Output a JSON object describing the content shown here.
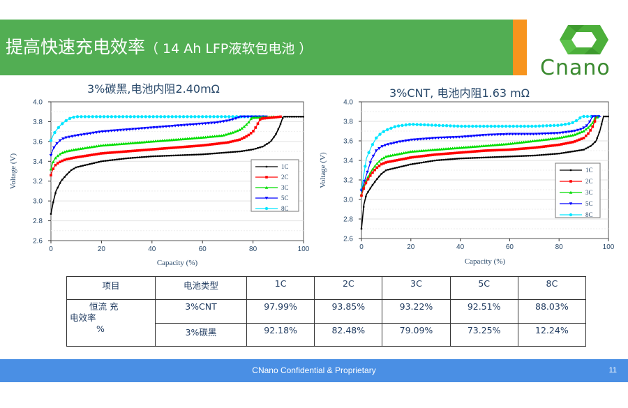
{
  "header": {
    "title": "提高快速充电效率",
    "subtitle": "（ 14 Ah LFP液软包电池 ）",
    "colors": {
      "bar": "#52ae53",
      "accent": "#f7941d"
    }
  },
  "logo": {
    "text": "Cnano",
    "icon": "hexagon-logo-icon",
    "color": "#3a8a2f"
  },
  "chart_data": [
    {
      "type": "line",
      "title": "3%碳黑,电池内阻2.40mΩ",
      "xlabel": "Capacity (%)",
      "ylabel": "Voltage (V)",
      "xlim": [
        0,
        100
      ],
      "ylim": [
        2.6,
        4.0
      ],
      "xticks": [
        "0",
        "20",
        "40",
        "60",
        "80",
        "100"
      ],
      "yticks": [
        "2.6",
        "2.8",
        "3.0",
        "3.2",
        "3.4",
        "3.6",
        "3.8",
        "4.0"
      ],
      "legend_position": "right",
      "grid": true,
      "series": [
        {
          "name": "1C",
          "color": "#000000",
          "x": [
            0,
            1,
            2,
            4,
            6,
            8,
            10,
            15,
            20,
            30,
            40,
            50,
            60,
            70,
            75,
            80,
            84,
            87,
            89,
            90.5,
            91.5,
            92,
            100
          ],
          "y": [
            2.87,
            3.0,
            3.1,
            3.2,
            3.26,
            3.31,
            3.34,
            3.37,
            3.4,
            3.43,
            3.45,
            3.46,
            3.47,
            3.49,
            3.5,
            3.52,
            3.55,
            3.6,
            3.67,
            3.75,
            3.82,
            3.85,
            3.85
          ]
        },
        {
          "name": "2C",
          "color": "#ff0000",
          "x": [
            0,
            0.5,
            1,
            2,
            4,
            6,
            10,
            20,
            30,
            40,
            50,
            60,
            70,
            75,
            78,
            80,
            81.5,
            82.5,
            83,
            91
          ],
          "y": [
            3.26,
            3.3,
            3.33,
            3.37,
            3.4,
            3.42,
            3.44,
            3.48,
            3.5,
            3.52,
            3.54,
            3.56,
            3.59,
            3.62,
            3.66,
            3.7,
            3.76,
            3.81,
            3.83,
            3.85
          ]
        },
        {
          "name": "3C",
          "color": "#00dd00",
          "x": [
            0,
            0.5,
            1,
            2,
            4,
            6,
            10,
            20,
            30,
            40,
            50,
            60,
            68,
            72,
            75,
            77,
            78.5,
            79.5,
            89
          ],
          "y": [
            3.32,
            3.37,
            3.4,
            3.44,
            3.48,
            3.5,
            3.52,
            3.56,
            3.58,
            3.6,
            3.62,
            3.64,
            3.66,
            3.69,
            3.72,
            3.76,
            3.8,
            3.84,
            3.85
          ]
        },
        {
          "name": "5C",
          "color": "#0000ff",
          "x": [
            0,
            0.5,
            1,
            2,
            4,
            6,
            10,
            15,
            20,
            30,
            40,
            50,
            60,
            65,
            70,
            73,
            75,
            86
          ],
          "y": [
            3.46,
            3.5,
            3.53,
            3.57,
            3.62,
            3.64,
            3.66,
            3.68,
            3.7,
            3.72,
            3.74,
            3.76,
            3.78,
            3.79,
            3.81,
            3.83,
            3.85,
            3.85
          ]
        },
        {
          "name": "8C",
          "color": "#00e5ff",
          "x": [
            0,
            1,
            2,
            4,
            6,
            8,
            10,
            85
          ],
          "y": [
            3.61,
            3.67,
            3.71,
            3.77,
            3.81,
            3.84,
            3.85,
            3.85
          ]
        }
      ]
    },
    {
      "type": "line",
      "title": "3%CNT, 电池内阻1.63 mΩ",
      "xlabel": "Capacity (%)",
      "ylabel": "Voltage (V)",
      "xlim": [
        0,
        100
      ],
      "ylim": [
        2.6,
        4.0
      ],
      "xticks": [
        "0",
        "20",
        "40",
        "60",
        "80",
        "100"
      ],
      "yticks": [
        "2.6",
        "2.8",
        "3.0",
        "3.2",
        "3.4",
        "3.6",
        "3.8",
        "4.0"
      ],
      "legend_position": "right",
      "grid": true,
      "series": [
        {
          "name": "1C",
          "color": "#000000",
          "x": [
            0,
            1,
            2,
            4,
            6,
            8,
            10,
            15,
            20,
            30,
            40,
            50,
            60,
            70,
            80,
            85,
            90,
            93,
            95,
            96.5,
            97.5,
            98,
            100
          ],
          "y": [
            2.7,
            2.95,
            3.05,
            3.13,
            3.2,
            3.26,
            3.3,
            3.33,
            3.36,
            3.4,
            3.42,
            3.43,
            3.44,
            3.45,
            3.47,
            3.49,
            3.51,
            3.55,
            3.6,
            3.7,
            3.8,
            3.85,
            3.85
          ]
        },
        {
          "name": "2C",
          "color": "#ff0000",
          "x": [
            0,
            1,
            2,
            4,
            6,
            8,
            10,
            20,
            30,
            40,
            50,
            60,
            70,
            80,
            86,
            90,
            92,
            93.5,
            94.5,
            95
          ],
          "y": [
            3.04,
            3.12,
            3.18,
            3.26,
            3.32,
            3.36,
            3.38,
            3.43,
            3.46,
            3.48,
            3.5,
            3.51,
            3.53,
            3.56,
            3.59,
            3.63,
            3.68,
            3.74,
            3.8,
            3.85
          ]
        },
        {
          "name": "3C",
          "color": "#00dd00",
          "x": [
            0,
            1,
            2,
            4,
            6,
            8,
            10,
            20,
            30,
            40,
            50,
            60,
            70,
            80,
            86,
            90,
            92,
            93.5,
            94.5,
            96
          ],
          "y": [
            3.05,
            3.14,
            3.2,
            3.29,
            3.36,
            3.41,
            3.44,
            3.49,
            3.51,
            3.53,
            3.55,
            3.57,
            3.6,
            3.63,
            3.66,
            3.7,
            3.74,
            3.78,
            3.83,
            3.85
          ]
        },
        {
          "name": "5C",
          "color": "#0000ff",
          "x": [
            0,
            1,
            2,
            4,
            6,
            8,
            10,
            15,
            20,
            30,
            40,
            50,
            60,
            70,
            80,
            86,
            89,
            91,
            92.5,
            93.5,
            97
          ],
          "y": [
            3.09,
            3.17,
            3.25,
            3.41,
            3.5,
            3.54,
            3.56,
            3.59,
            3.61,
            3.63,
            3.64,
            3.66,
            3.67,
            3.67,
            3.68,
            3.7,
            3.72,
            3.75,
            3.8,
            3.85,
            3.85
          ]
        },
        {
          "name": "8C",
          "color": "#00e5ff",
          "x": [
            0,
            2,
            4,
            6,
            8,
            10,
            14,
            20,
            30,
            40,
            50,
            60,
            70,
            80,
            85,
            88,
            89,
            96
          ],
          "y": [
            3.1,
            3.42,
            3.54,
            3.63,
            3.68,
            3.71,
            3.75,
            3.77,
            3.76,
            3.75,
            3.75,
            3.75,
            3.75,
            3.76,
            3.78,
            3.82,
            3.85,
            3.85
          ]
        }
      ]
    }
  ],
  "table": {
    "headers": [
      "项目",
      "电池类型",
      "1C",
      "2C",
      "3C",
      "5C",
      "8C"
    ],
    "row_group_label_line1": "恒流 充",
    "row_group_label_line2": "电效率",
    "row_group_label_line3": "%",
    "rows": [
      {
        "type": "3%CNT",
        "values": [
          "97.99%",
          "93.85%",
          "93.22%",
          "92.51%",
          "88.03%"
        ]
      },
      {
        "type": "3%碳黑",
        "values": [
          "92.18%",
          "82.48%",
          "79.09%",
          "73.25%",
          "12.24%"
        ]
      }
    ]
  },
  "footer": {
    "text": "CNano Confidential & Proprietary",
    "page": "11",
    "color": "#4a8fe4"
  }
}
